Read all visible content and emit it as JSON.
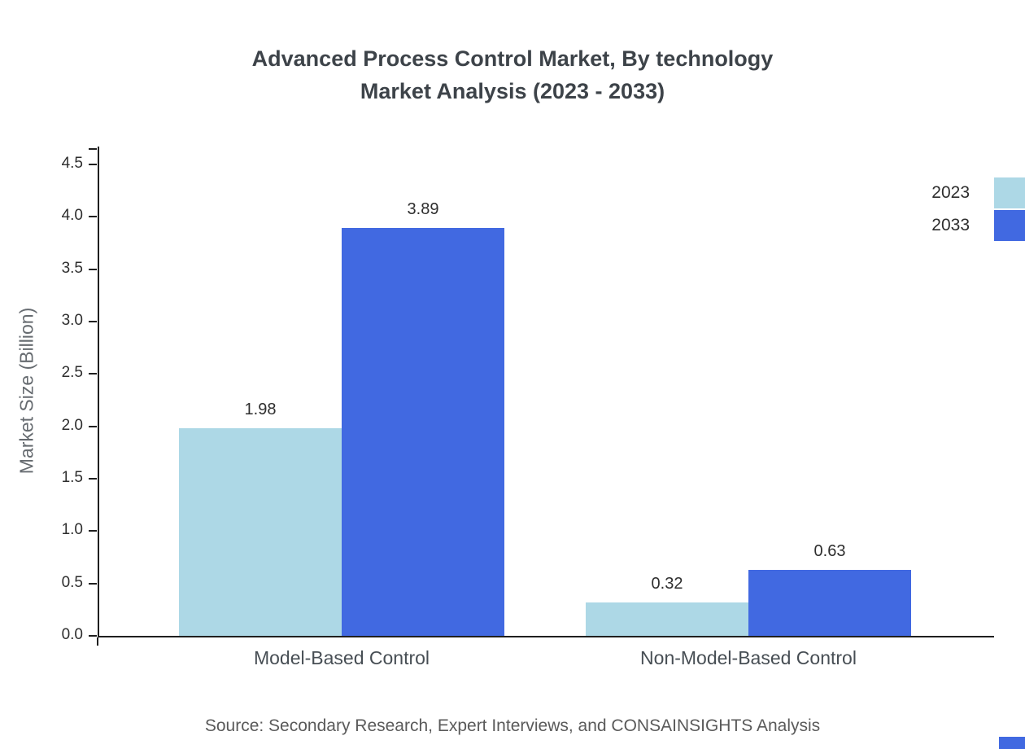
{
  "title": {
    "line1": "Advanced Process Control Market, By technology",
    "line2": "Market Analysis (2023 - 2033)"
  },
  "chart_data": {
    "type": "bar",
    "categories": [
      "Model-Based Control",
      "Non-Model-Based Control"
    ],
    "series": [
      {
        "name": "2023",
        "color": "#ADD8E6",
        "values": [
          1.98,
          0.32
        ]
      },
      {
        "name": "2033",
        "color": "#4169E1",
        "values": [
          3.89,
          0.63
        ]
      }
    ],
    "title": "Advanced Process Control Market, By technology Market Analysis (2023 - 2033)",
    "xlabel": "",
    "ylabel": "Market Size (Billion)",
    "ylim": [
      0,
      4.5
    ],
    "ytick_step": 0.5,
    "yticks": [
      "0.0",
      "0.5",
      "1.0",
      "1.5",
      "2.0",
      "2.5",
      "3.0",
      "3.5",
      "4.0",
      "4.5"
    ],
    "grid": false,
    "legend_position": "top-right",
    "value_labels": [
      [
        "1.98",
        "0.32"
      ],
      [
        "3.89",
        "0.63"
      ]
    ]
  },
  "source": "Source: Secondary Research, Expert Interviews, and CONSAINSIGHTS Analysis",
  "colors": {
    "series_2023": "#ADD8E6",
    "series_2033": "#4169E1",
    "axis": "#1f1f1f",
    "title_text": "#3d4349",
    "source_text": "#5a5a5a"
  }
}
